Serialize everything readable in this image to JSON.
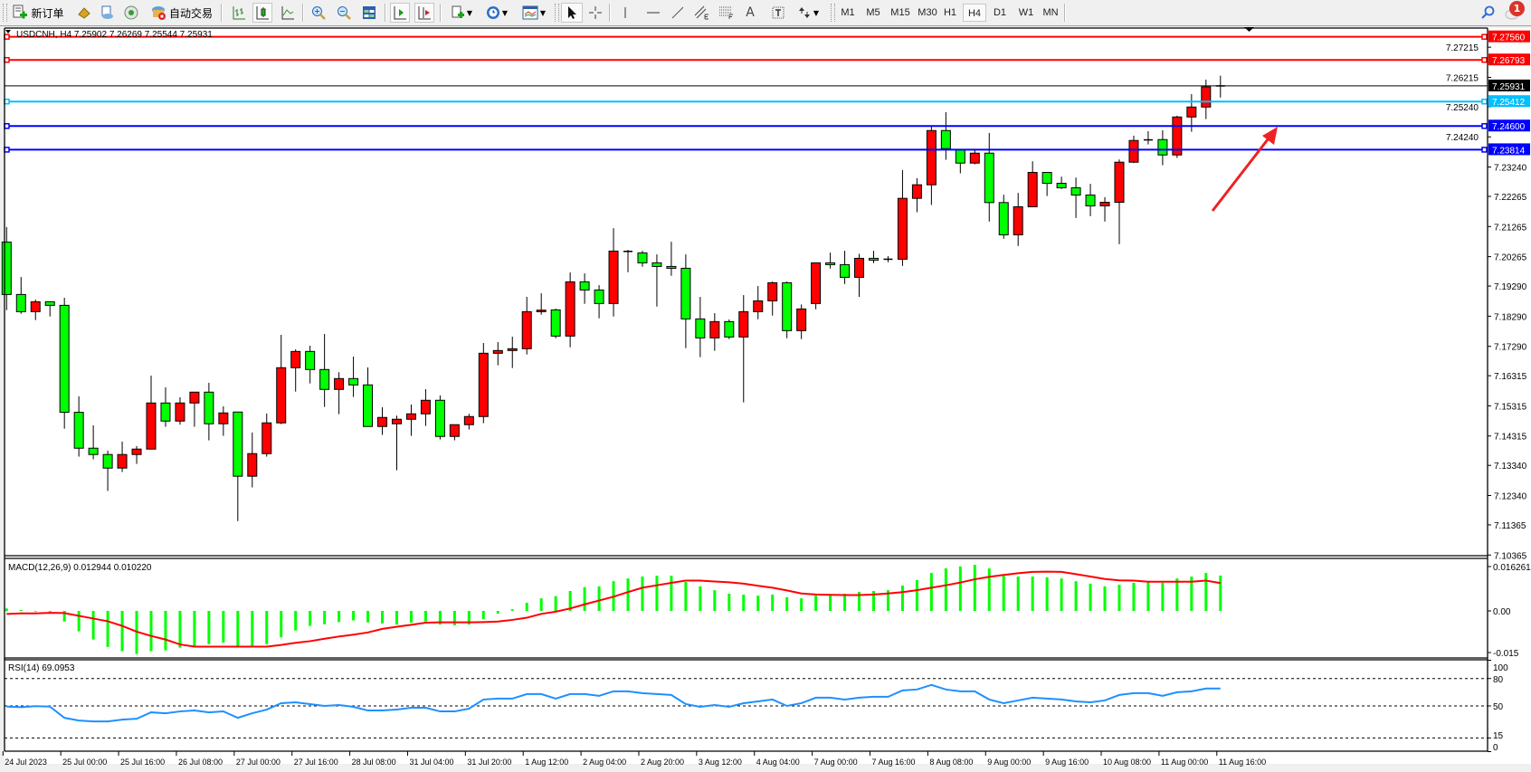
{
  "toolbar": {
    "new_order": "新订单",
    "auto_trading": "自动交易",
    "timeframes": [
      "M1",
      "M5",
      "M15",
      "M30",
      "H1",
      "H4",
      "D1",
      "W1",
      "MN"
    ],
    "active_timeframe": "H4",
    "notification_count": "1",
    "text_tool": "A"
  },
  "chart": {
    "header": "USDCNH, H4  7.25902 7.26269 7.25544 7.25931",
    "symbol": "USDCNH",
    "bull_color": "#ff0000",
    "bear_color": "#00ff00",
    "levels": [
      {
        "price": 7.2756,
        "label": "7.27560",
        "color": "#ff0000"
      },
      {
        "price": 7.26793,
        "label": "7.26793",
        "color": "#ff0000"
      },
      {
        "price": 7.25412,
        "label": "7.25412",
        "color": "#00bfff"
      },
      {
        "price": 7.246,
        "label": "7.24600",
        "color": "#0000ff"
      },
      {
        "price": 7.23814,
        "label": "7.23814",
        "color": "#0000ff"
      }
    ],
    "bid": {
      "price": 7.25931,
      "label": "7.25931",
      "color": "#000000"
    },
    "annotation_arrow_color": "#ee2222"
  },
  "chart_data": [
    {
      "type": "candlestick",
      "title": "USDCNH, H4",
      "ylim": [
        7.10365,
        7.27851
      ],
      "y_ticks": [
        "7.27215",
        "7.26215",
        "7.25240",
        "7.24240",
        "7.23240",
        "7.22265",
        "7.21265",
        "7.20265",
        "7.19290",
        "7.18290",
        "7.17290",
        "7.16315",
        "7.15315",
        "7.14315",
        "7.13340",
        "7.12340",
        "7.11365",
        "7.10365"
      ],
      "x_labels": [
        "24 Jul 2023",
        "25 Jul 00:00",
        "25 Jul 16:00",
        "26 Jul 08:00",
        "27 Jul 00:00",
        "27 Jul 16:00",
        "28 Jul 08:00",
        "31 Jul 04:00",
        "31 Jul 20:00",
        "1 Aug 12:00",
        "2 Aug 04:00",
        "2 Aug 20:00",
        "3 Aug 12:00",
        "4 Aug 04:00",
        "7 Aug 00:00",
        "7 Aug 16:00",
        "8 Aug 08:00",
        "9 Aug 00:00",
        "9 Aug 16:00",
        "10 Aug 08:00",
        "11 Aug 00:00",
        "11 Aug 16:00"
      ],
      "x_label_every_bars": 4,
      "ohlc": [
        [
          7.2075,
          7.2125,
          7.1849,
          7.1901
        ],
        [
          7.1901,
          7.1959,
          7.1837,
          7.1844
        ],
        [
          7.1844,
          7.1884,
          7.1816,
          7.1877
        ],
        [
          7.1877,
          7.1877,
          7.1828,
          7.1865
        ],
        [
          7.1865,
          7.189,
          7.1456,
          7.151
        ],
        [
          7.151,
          7.1563,
          7.1363,
          7.1391
        ],
        [
          7.1391,
          7.1467,
          7.1354,
          7.137
        ],
        [
          7.137,
          7.1383,
          7.1249,
          7.1325
        ],
        [
          7.1325,
          7.1413,
          7.1312,
          7.137
        ],
        [
          7.137,
          7.1398,
          7.1339,
          7.1388
        ],
        [
          7.1388,
          7.1632,
          7.1388,
          7.1541
        ],
        [
          7.1541,
          7.1593,
          7.1462,
          7.1481
        ],
        [
          7.1481,
          7.156,
          7.1469,
          7.1541
        ],
        [
          7.1541,
          7.1577,
          7.1462,
          7.1577
        ],
        [
          7.1577,
          7.1608,
          7.1417,
          7.1472
        ],
        [
          7.1472,
          7.153,
          7.1432,
          7.1508
        ],
        [
          7.1511,
          7.1511,
          7.1149,
          7.1298
        ],
        [
          7.1298,
          7.1443,
          7.1261,
          7.1373
        ],
        [
          7.1373,
          7.1506,
          7.1363,
          7.1475
        ],
        [
          7.1475,
          7.1767,
          7.1471,
          7.1658
        ],
        [
          7.1658,
          7.1719,
          7.1579,
          7.1712
        ],
        [
          7.1712,
          7.1731,
          7.1606,
          7.1652
        ],
        [
          7.1652,
          7.177,
          7.1528,
          7.1586
        ],
        [
          7.1586,
          7.1643,
          7.1504,
          7.1622
        ],
        [
          7.1622,
          7.1695,
          7.1561,
          7.1601
        ],
        [
          7.1601,
          7.1659,
          7.1463,
          7.1463
        ],
        [
          7.1463,
          7.1527,
          7.1435,
          7.1493
        ],
        [
          7.1472,
          7.1499,
          7.1318,
          7.1487
        ],
        [
          7.1487,
          7.1536,
          7.1432,
          7.1505
        ],
        [
          7.1505,
          7.1587,
          7.1465,
          7.155
        ],
        [
          7.155,
          7.1566,
          7.142,
          7.143
        ],
        [
          7.143,
          7.1469,
          7.1417,
          7.1469
        ],
        [
          7.1469,
          7.1505,
          7.1453,
          7.1496
        ],
        [
          7.1496,
          7.174,
          7.1474,
          7.1706
        ],
        [
          7.1706,
          7.1743,
          7.1666,
          7.1715
        ],
        [
          7.1715,
          7.1761,
          7.1657,
          7.1721
        ],
        [
          7.1721,
          7.1893,
          7.1702,
          7.1844
        ],
        [
          7.1844,
          7.1905,
          7.1834,
          7.1849
        ],
        [
          7.185,
          7.1854,
          7.1756,
          7.1763
        ],
        [
          7.1763,
          7.1974,
          7.1726,
          7.1943
        ],
        [
          7.1943,
          7.1971,
          7.187,
          7.1916
        ],
        [
          7.1916,
          7.1932,
          7.1822,
          7.1871
        ],
        [
          7.1871,
          7.2121,
          7.1828,
          7.2045
        ],
        [
          7.2044,
          7.2049,
          7.1975,
          7.2043
        ],
        [
          7.2039,
          7.2046,
          7.1993,
          7.2006
        ],
        [
          7.2006,
          7.2034,
          7.1861,
          7.1994
        ],
        [
          7.1994,
          7.2076,
          7.1963,
          7.1988
        ],
        [
          7.1988,
          7.2034,
          7.1723,
          7.182
        ],
        [
          7.182,
          7.1893,
          7.1693,
          7.1757
        ],
        [
          7.1757,
          7.1839,
          7.1714,
          7.1811
        ],
        [
          7.1811,
          7.1818,
          7.1753,
          7.176
        ],
        [
          7.176,
          7.1899,
          7.1543,
          7.1844
        ],
        [
          7.1844,
          7.1929,
          7.1819,
          7.188
        ],
        [
          7.188,
          7.1944,
          7.1831,
          7.194
        ],
        [
          7.194,
          7.1944,
          7.1756,
          7.1781
        ],
        [
          7.1781,
          7.1868,
          7.1753,
          7.1853
        ],
        [
          7.1871,
          7.2006,
          7.1852,
          7.2006
        ],
        [
          7.2006,
          7.204,
          7.1987,
          7.2
        ],
        [
          7.2,
          7.2046,
          7.1936,
          7.1958
        ],
        [
          7.1958,
          7.2036,
          7.1893,
          7.2021
        ],
        [
          7.2021,
          7.2046,
          7.2005,
          7.2015
        ],
        [
          7.2018,
          7.2028,
          7.2008,
          7.2017
        ],
        [
          7.2018,
          7.2314,
          7.1996,
          7.222
        ],
        [
          7.222,
          7.2287,
          7.2174,
          7.2265
        ],
        [
          7.2265,
          7.246,
          7.2198,
          7.2445
        ],
        [
          7.2445,
          7.2506,
          7.2348,
          7.2385
        ],
        [
          7.2382,
          7.2382,
          7.2303,
          7.2337
        ],
        [
          7.2337,
          7.238,
          7.2333,
          7.237
        ],
        [
          7.237,
          7.2437,
          7.2143,
          7.2206
        ],
        [
          7.2206,
          7.2232,
          7.2086,
          7.2099
        ],
        [
          7.2099,
          7.2238,
          7.2062,
          7.2192
        ],
        [
          7.2192,
          7.2343,
          7.2192,
          7.2306
        ],
        [
          7.2306,
          7.2306,
          7.2228,
          7.227
        ],
        [
          7.227,
          7.2292,
          7.2251,
          7.2255
        ],
        [
          7.2255,
          7.2289,
          7.2155,
          7.2231
        ],
        [
          7.2231,
          7.2268,
          7.2161,
          7.2195
        ],
        [
          7.2195,
          7.2224,
          7.2143,
          7.2207
        ],
        [
          7.2207,
          7.2349,
          7.2068,
          7.234
        ],
        [
          7.234,
          7.2428,
          7.2337,
          7.2412
        ],
        [
          7.2414,
          7.2443,
          7.2399,
          7.2413
        ],
        [
          7.2415,
          7.2446,
          7.233,
          7.2364
        ],
        [
          7.2364,
          7.2494,
          7.2354,
          7.249
        ],
        [
          7.249,
          7.2566,
          7.2441,
          7.2523
        ],
        [
          7.2523,
          7.2614,
          7.2483,
          7.259
        ],
        [
          7.25902,
          7.26269,
          7.25544,
          7.25931
        ]
      ]
    },
    {
      "type": "bar+line",
      "title": "MACD(12,26,9) 0.012944 0.010220",
      "y_ticks": [
        "0.016261",
        "0.00",
        "-0.015"
      ],
      "series": [
        {
          "name": "MACD",
          "type": "bar",
          "color": "#00ff00",
          "values": [
            0.0009,
            0.0003,
            0,
            -0.0002,
            -0.0039,
            -0.0075,
            -0.0105,
            -0.0132,
            -0.0148,
            -0.0158,
            -0.0148,
            -0.0145,
            -0.0135,
            -0.0134,
            -0.0122,
            -0.0116,
            -0.0131,
            -0.0131,
            -0.0122,
            -0.0097,
            -0.0072,
            -0.0055,
            -0.0049,
            -0.0041,
            -0.0035,
            -0.0042,
            -0.0046,
            -0.005,
            -0.0043,
            -0.0039,
            -0.005,
            -0.0053,
            -0.005,
            -0.003,
            -0.001,
            0.0006,
            0.003,
            0.0046,
            0.0054,
            0.0073,
            0.0087,
            0.009,
            0.0109,
            0.0119,
            0.0126,
            0.0129,
            0.0129,
            0.0106,
            0.009,
            0.0076,
            0.0063,
            0.006,
            0.0056,
            0.006,
            0.005,
            0.0046,
            0.0056,
            0.0061,
            0.0063,
            0.007,
            0.0073,
            0.0076,
            0.0093,
            0.0113,
            0.0139,
            0.0156,
            0.0163,
            0.0169,
            0.0156,
            0.0129,
            0.0126,
            0.0126,
            0.0123,
            0.0119,
            0.0109,
            0.01,
            0.009,
            0.0096,
            0.0103,
            0.0106,
            0.0103,
            0.0119,
            0.0126,
            0.0139,
            0.012944
          ]
        },
        {
          "name": "Signal",
          "type": "line",
          "color": "#ff0000",
          "values": [
            -0.0011,
            -0.0009,
            -0.0009,
            -0.0007,
            -0.0008,
            -0.0018,
            -0.0028,
            -0.0038,
            -0.0055,
            -0.0076,
            -0.0092,
            -0.0105,
            -0.0123,
            -0.0131,
            -0.0131,
            -0.0131,
            -0.0131,
            -0.0131,
            -0.0131,
            -0.0125,
            -0.0117,
            -0.0111,
            -0.0102,
            -0.0094,
            -0.0087,
            -0.0079,
            -0.0066,
            -0.0058,
            -0.0051,
            -0.0043,
            -0.0042,
            -0.0042,
            -0.0042,
            -0.0041,
            -0.0039,
            -0.0033,
            -0.0025,
            -0.0011,
            -0.0003,
            0.0009,
            0.0024,
            0.0038,
            0.0052,
            0.0069,
            0.0085,
            0.0094,
            0.0103,
            0.0111,
            0.0111,
            0.0108,
            0.0105,
            0.01,
            0.0092,
            0.0085,
            0.0075,
            0.0064,
            0.006,
            0.0059,
            0.0058,
            0.0058,
            0.006,
            0.0064,
            0.0069,
            0.0076,
            0.0085,
            0.0094,
            0.0104,
            0.0116,
            0.0125,
            0.0132,
            0.0138,
            0.0143,
            0.0144,
            0.0143,
            0.0135,
            0.0126,
            0.0117,
            0.0112,
            0.0111,
            0.0107,
            0.0107,
            0.0107,
            0.0107,
            0.0111,
            0.01022
          ]
        }
      ]
    },
    {
      "type": "line",
      "title": "RSI(14) 69.0953",
      "ylim": [
        0,
        100
      ],
      "y_ticks": [
        "100",
        "80",
        "50",
        "15",
        "0"
      ],
      "levels": [
        80,
        50,
        15
      ],
      "series": [
        {
          "name": "RSI",
          "color": "#1e90ff",
          "values": [
            49.3,
            48.7,
            49.7,
            49.3,
            37,
            34,
            33,
            33,
            35,
            36,
            43,
            42,
            44,
            45,
            43,
            44,
            37,
            42,
            46,
            53,
            54,
            52,
            50,
            51,
            49,
            45,
            45,
            46,
            48,
            48,
            44,
            44,
            47,
            57,
            58,
            58,
            63,
            63,
            58,
            63,
            63,
            61,
            66,
            66,
            64,
            63,
            62,
            52,
            49,
            51,
            49,
            53,
            55,
            57,
            50,
            53,
            59,
            59,
            57,
            59,
            60,
            60,
            67,
            68,
            73,
            68,
            66,
            66,
            57,
            53,
            56,
            59,
            58,
            57,
            55,
            54,
            56,
            62,
            64,
            64,
            61,
            65,
            66,
            69,
            69.0953
          ]
        }
      ]
    }
  ]
}
